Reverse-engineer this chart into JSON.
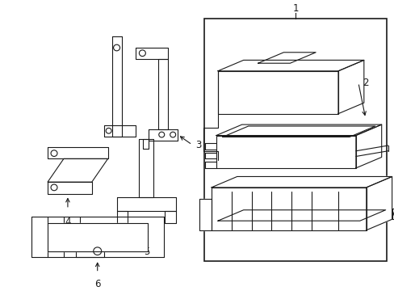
{
  "background_color": "#ffffff",
  "line_color": "#1a1a1a",
  "line_width": 0.8,
  "label_fontsize": 8.5,
  "fig_width": 4.89,
  "fig_height": 3.6,
  "dpi": 100
}
